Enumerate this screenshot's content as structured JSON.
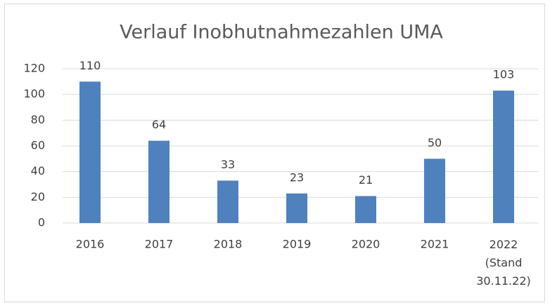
{
  "chart_data": {
    "type": "bar",
    "title": "Verlauf Inobhutnahmezahlen UMA",
    "categories": [
      "2016",
      "2017",
      "2018",
      "2019",
      "2020",
      "2021",
      "2022 (Stand 30.11.22)"
    ],
    "values": [
      110,
      64,
      33,
      23,
      21,
      50,
      103
    ],
    "color": "#4f81bd",
    "ylim": [
      0,
      120
    ],
    "yticks": [
      0,
      20,
      40,
      60,
      80,
      100,
      120
    ],
    "grid": true
  }
}
